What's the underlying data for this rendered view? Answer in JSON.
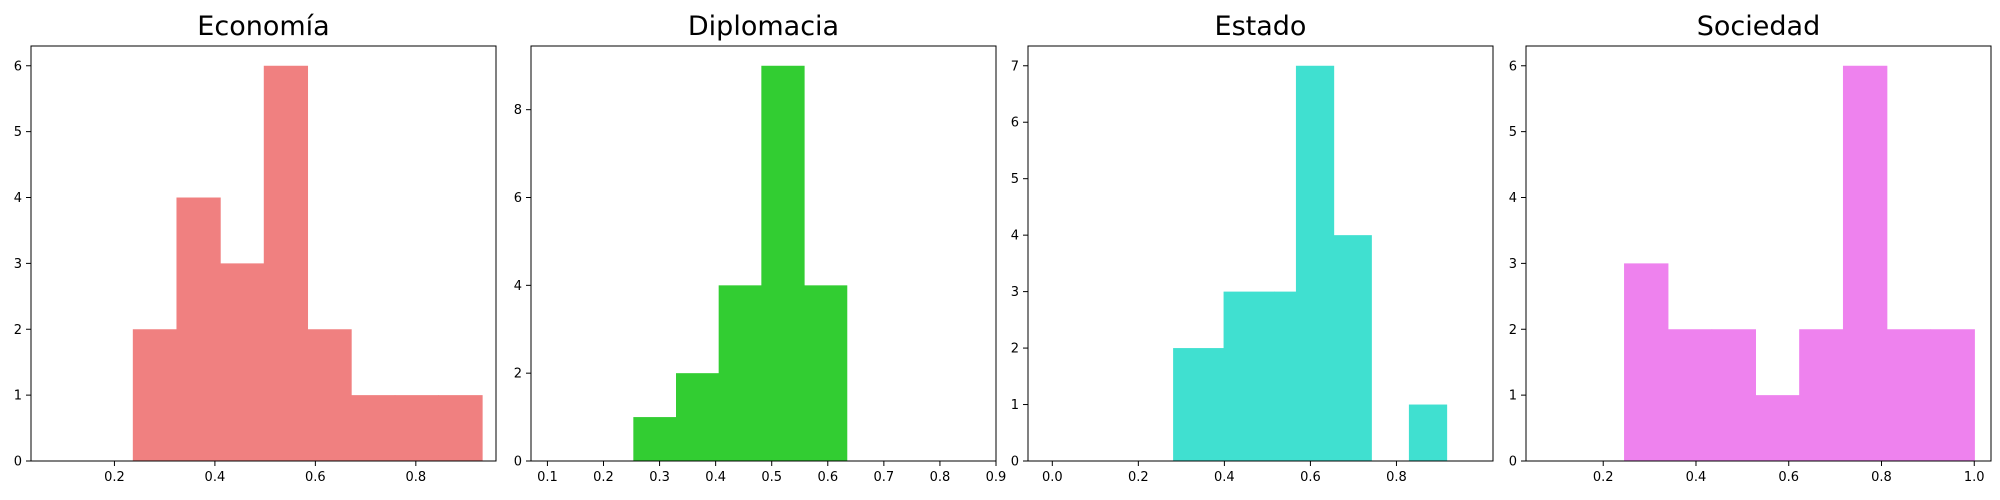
{
  "chart_data": [
    {
      "type": "bar",
      "title": "Economía",
      "color": "#F08080",
      "xlim": [
        0.0339,
        0.9596
      ],
      "ylim": [
        0,
        6.3
      ],
      "xticks": [
        0.2,
        0.4,
        0.6,
        0.8
      ],
      "xtick_labels": [
        "0.2",
        "0.4",
        "0.6",
        "0.8"
      ],
      "yticks": [
        0,
        1,
        2,
        3,
        4,
        5,
        6
      ],
      "bins": [
        {
          "x0": 0.2366,
          "x1": 0.3235,
          "count": 2
        },
        {
          "x0": 0.3235,
          "x1": 0.4104,
          "count": 4
        },
        {
          "x0": 0.4104,
          "x1": 0.4973,
          "count": 3
        },
        {
          "x0": 0.4973,
          "x1": 0.5842,
          "count": 6
        },
        {
          "x0": 0.5842,
          "x1": 0.6711,
          "count": 2
        },
        {
          "x0": 0.6711,
          "x1": 0.758,
          "count": 1
        },
        {
          "x0": 0.758,
          "x1": 0.8449,
          "count": 1
        },
        {
          "x0": 0.8449,
          "x1": 0.9318,
          "count": 1
        }
      ]
    },
    {
      "type": "bar",
      "title": "Diplomacia",
      "color": "#32CD32",
      "xlim": [
        0.0707,
        0.9
      ],
      "ylim": [
        0,
        9.45
      ],
      "xticks": [
        0.1,
        0.2,
        0.3,
        0.4,
        0.5,
        0.6,
        0.7,
        0.8,
        0.9
      ],
      "xtick_labels": [
        "0.1",
        "0.2",
        "0.3",
        "0.4",
        "0.5",
        "0.6",
        "0.7",
        "0.8",
        "0.9"
      ],
      "yticks": [
        0,
        2,
        4,
        6,
        8
      ],
      "bins": [
        {
          "x0": 0.2532,
          "x1": 0.3293,
          "count": 1
        },
        {
          "x0": 0.3293,
          "x1": 0.4054,
          "count": 2
        },
        {
          "x0": 0.4054,
          "x1": 0.4815,
          "count": 4
        },
        {
          "x0": 0.4815,
          "x1": 0.5576,
          "count": 9
        },
        {
          "x0": 0.5576,
          "x1": 0.6337,
          "count": 4
        }
      ]
    },
    {
      "type": "bar",
      "title": "Estado",
      "color": "#40E0D0",
      "xlim": [
        -0.0565,
        1.0244
      ],
      "ylim": [
        0,
        7.35
      ],
      "xticks": [
        0.0,
        0.2,
        0.4,
        0.6,
        0.8
      ],
      "xtick_labels": [
        "0.0",
        "0.2",
        "0.4",
        "0.6",
        "0.8"
      ],
      "yticks": [
        0,
        1,
        2,
        3,
        4,
        5,
        6,
        7
      ],
      "bins": [
        {
          "x0": 0.2808,
          "x1": 0.3981,
          "count": 2
        },
        {
          "x0": 0.3981,
          "x1": 0.5154,
          "count": 3
        },
        {
          "x0": 0.5154,
          "x1": 0.5663,
          "count": 3
        },
        {
          "x0": 0.5663,
          "x1": 0.6538,
          "count": 7
        },
        {
          "x0": 0.6538,
          "x1": 0.7414,
          "count": 4
        },
        {
          "x0": 0.7414,
          "x1": 0.8289,
          "count": 0
        },
        {
          "x0": 0.8289,
          "x1": 0.9164,
          "count": 1
        }
      ]
    },
    {
      "type": "bar",
      "title": "Sociedad",
      "color": "#EE82EE",
      "xlim": [
        0.0335,
        1.0361
      ],
      "ylim": [
        0,
        6.3
      ],
      "xticks": [
        0.2,
        0.4,
        0.6,
        0.8,
        1.0
      ],
      "xtick_labels": [
        "0.2",
        "0.4",
        "0.6",
        "0.8",
        "1.0"
      ],
      "yticks": [
        0,
        1,
        2,
        3,
        4,
        5,
        6
      ],
      "bins": [
        {
          "x0": 0.2449,
          "x1": 0.3393,
          "count": 3
        },
        {
          "x0": 0.3393,
          "x1": 0.4337,
          "count": 2
        },
        {
          "x0": 0.4337,
          "x1": 0.5281,
          "count": 2
        },
        {
          "x0": 0.5281,
          "x1": 0.6225,
          "count": 1
        },
        {
          "x0": 0.6225,
          "x1": 0.7169,
          "count": 2
        },
        {
          "x0": 0.7169,
          "x1": 0.8113,
          "count": 6
        },
        {
          "x0": 0.8113,
          "x1": 0.9057,
          "count": 2
        },
        {
          "x0": 0.9057,
          "x1": 1.0001,
          "count": 2
        }
      ]
    }
  ]
}
